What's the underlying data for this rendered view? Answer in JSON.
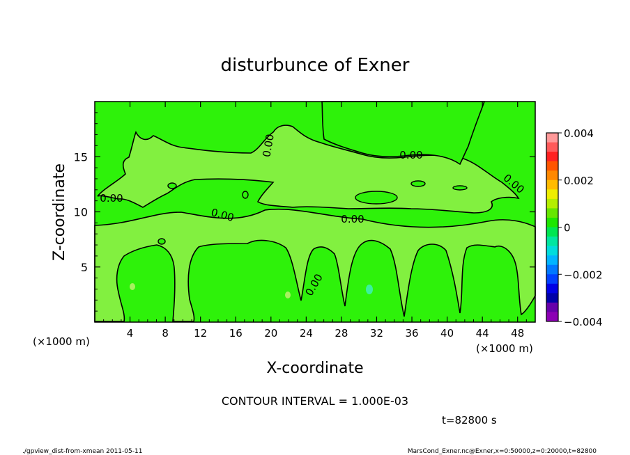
{
  "chart_data": {
    "type": "heatmap",
    "title": "disturbunce of Exner",
    "xlabel": "X-coordinate",
    "ylabel": "Z-coordinate",
    "x_unit": "(×1000 m)",
    "y_unit": "(×1000 m)",
    "xlim": [
      0,
      50
    ],
    "ylim": [
      0,
      20
    ],
    "x_ticks": [
      4,
      8,
      12,
      16,
      20,
      24,
      28,
      32,
      36,
      40,
      44,
      48
    ],
    "y_ticks": [
      5,
      10,
      15
    ],
    "contour_labels": [
      "0.00",
      "0.00",
      "0.00",
      "0.00",
      "0.00",
      "0.00",
      "0.00"
    ],
    "colorbar": {
      "range": [
        -0.004,
        0.004
      ],
      "tick_labels": [
        "0.004",
        "0.002",
        "0",
        "−0.002",
        "−0.004"
      ],
      "tick_values": [
        0.004,
        0.002,
        0,
        -0.002,
        -0.004
      ],
      "colors": [
        "#ff9999",
        "#ff5a5a",
        "#ff2020",
        "#ff5500",
        "#ff8800",
        "#ffbb00",
        "#eeee00",
        "#b4ee00",
        "#66e600",
        "#1ee600",
        "#00e650",
        "#00e6a0",
        "#00dcdc",
        "#00b4ff",
        "#0078ff",
        "#0040ff",
        "#0000e6",
        "#0000a8",
        "#6600aa",
        "#8c00b4"
      ]
    },
    "field_colors": {
      "background": "#2ef20a",
      "positive_region": "#82f040"
    }
  },
  "annotations": {
    "contour_interval": "CONTOUR INTERVAL = 1.000E-03",
    "time": "t=82800 s",
    "footer_left": "./gpview_dist-from-xmean  2011-05-11",
    "footer_right": "MarsCond_Exner.nc@Exner,x=0:50000,z=0:20000,t=82800"
  }
}
